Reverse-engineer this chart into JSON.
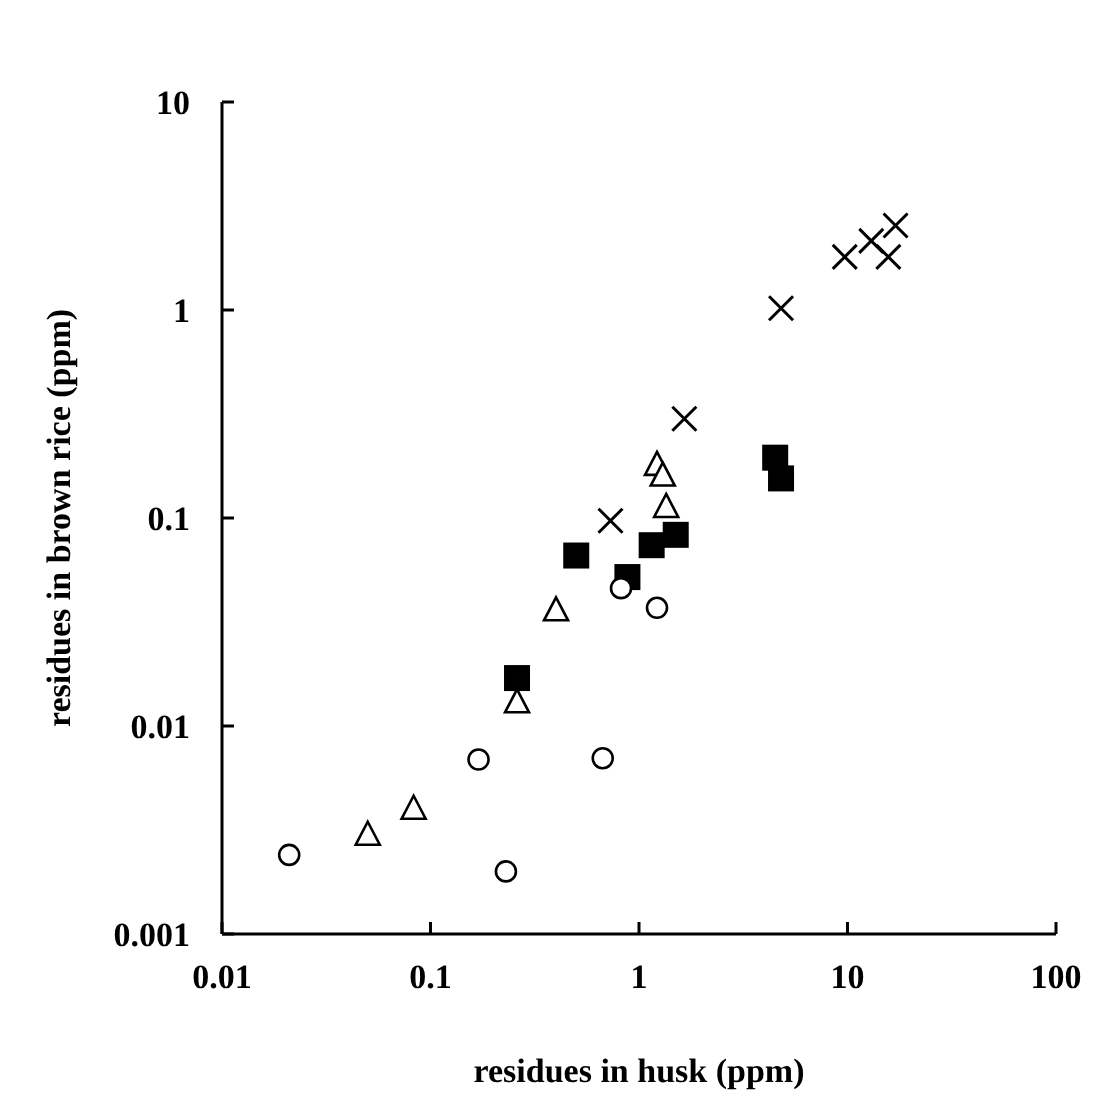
{
  "chart_data": {
    "type": "scatter",
    "xlabel": "residues in husk (ppm)",
    "ylabel": "residues in brown rice (ppm)",
    "log": "xy",
    "grid": false,
    "xlim": [
      0.01,
      100
    ],
    "xticks": [
      0.01,
      0.1,
      1,
      10,
      100
    ],
    "ylim": [
      0.001,
      10
    ],
    "yticks": [
      0.001,
      0.01,
      0.1,
      1,
      10
    ],
    "series": [
      {
        "marker": "circle",
        "color": "#000000",
        "x": [
          0.021,
          0.17,
          0.23,
          0.67,
          1.22,
          0.82
        ],
        "values": [
          0.0024,
          0.0069,
          0.002,
          0.007,
          0.037,
          0.046
        ]
      },
      {
        "marker": "triangle",
        "color": "#000000",
        "x": [
          0.05,
          0.083,
          0.26,
          0.4,
          1.22,
          1.3,
          1.35
        ],
        "values": [
          0.003,
          0.004,
          0.013,
          0.036,
          0.18,
          0.16,
          0.113
        ]
      },
      {
        "marker": "square",
        "color": "#000000",
        "x": [
          0.26,
          0.5,
          0.88,
          1.15,
          1.5,
          4.5,
          4.8
        ],
        "values": [
          0.017,
          0.066,
          0.052,
          0.074,
          0.083,
          0.195,
          0.155
        ]
      },
      {
        "marker": "cross",
        "color": "#000000",
        "x": [
          0.73,
          1.65,
          4.8,
          9.7,
          13,
          15.7,
          17
        ],
        "values": [
          0.097,
          0.3,
          1.02,
          1.8,
          2.15,
          1.8,
          2.55
        ]
      }
    ]
  }
}
